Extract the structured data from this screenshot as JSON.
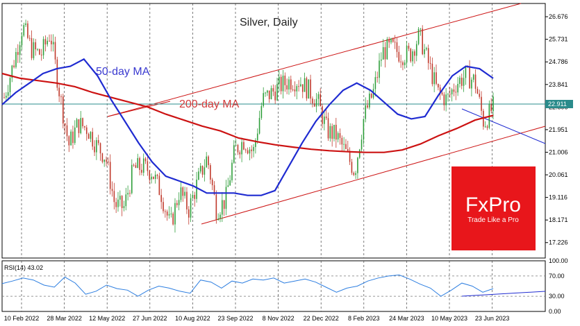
{
  "chart_data": {
    "type": "candlestick",
    "title": "Silver, Daily",
    "annotations": {
      "ma50": "50-day MA",
      "ma200": "200-day MA"
    },
    "last_price": "22.911",
    "price_axis": {
      "labels": [
        "26.676",
        "25.731",
        "24.786",
        "23.841",
        "22.896",
        "21.951",
        "21.006",
        "20.061",
        "19.116",
        "18.171",
        "17.226"
      ],
      "values": [
        26.676,
        25.731,
        24.786,
        23.841,
        22.896,
        21.951,
        21.006,
        20.061,
        19.116,
        18.171,
        17.226
      ],
      "range": [
        16.58,
        27.23
      ]
    },
    "date_axis": {
      "labels": [
        "10 Feb 2022",
        "28 Mar 2022",
        "12 May 2022",
        "27 Jun 2022",
        "10 Aug 2022",
        "23 Sep 2022",
        "8 Nov 2022",
        "22 Dec 2022",
        "8 Feb 2023",
        "24 Mar 2023",
        "10 May 2023",
        "23 Jun 2023"
      ]
    },
    "price_series": [
      [
        "10 Feb 2022",
        23.3
      ],
      [
        "28 Feb 2022",
        24.7
      ],
      [
        "8 Mar 2022",
        26.3
      ],
      [
        "15 Mar 2022",
        25.3
      ],
      [
        "28 Mar 2022",
        25.1
      ],
      [
        "18 Apr 2022",
        26.0
      ],
      [
        "28 Apr 2022",
        23.5
      ],
      [
        "12 May 2022",
        21.3
      ],
      [
        "20 May 2022",
        22.2
      ],
      [
        "5 Jun 2022",
        22.0
      ],
      [
        "20 Jun 2022",
        21.3
      ],
      [
        "27 Jun 2022",
        20.8
      ],
      [
        "14 Jul 2022",
        18.8
      ],
      [
        "22 Jul 2022",
        18.7
      ],
      [
        "29 Jul 2022",
        20.3
      ],
      [
        "5 Aug 2022",
        20.4
      ],
      [
        "10 Aug 2022",
        20.2
      ],
      [
        "22 Aug 2022",
        19.3
      ],
      [
        "1 Sep 2022",
        17.9
      ],
      [
        "15 Sep 2022",
        19.4
      ],
      [
        "23 Sep 2022",
        18.6
      ],
      [
        "1 Oct 2022",
        19.8
      ],
      [
        "5 Oct 2022",
        20.8
      ],
      [
        "15 Oct 2022",
        18.6
      ],
      [
        "28 Oct 2022",
        19.0
      ],
      [
        "8 Nov 2022",
        21.1
      ],
      [
        "15 Nov 2022",
        21.5
      ],
      [
        "24 Nov 2022",
        21.0
      ],
      [
        "1 Dec 2022",
        23.2
      ],
      [
        "10 Dec 2022",
        23.5
      ],
      [
        "22 Dec 2022",
        23.8
      ],
      [
        "2 Jan 2023",
        24.0
      ],
      [
        "13 Jan 2023",
        24.0
      ],
      [
        "23 Jan 2023",
        23.6
      ],
      [
        "31 Jan 2023",
        23.1
      ],
      [
        "8 Feb 2023",
        21.9
      ],
      [
        "20 Feb 2023",
        21.7
      ],
      [
        "1 Mar 2023",
        21.0
      ],
      [
        "10 Mar 2023",
        20.2
      ],
      [
        "17 Mar 2023",
        22.5
      ],
      [
        "24 Mar 2023",
        23.5
      ],
      [
        "4 Apr 2023",
        25.2
      ],
      [
        "14 Apr 2023",
        25.4
      ],
      [
        "21 Apr 2023",
        25.1
      ],
      [
        "28 Apr 2023",
        25.1
      ],
      [
        "5 May 2023",
        25.9
      ],
      [
        "10 May 2023",
        24.7
      ],
      [
        "17 May 2023",
        23.5
      ],
      [
        "26 May 2023",
        23.2
      ],
      [
        "2 Jun 2023",
        23.9
      ],
      [
        "9 Jun 2023",
        24.2
      ],
      [
        "16 Jun 2023",
        24.0
      ],
      [
        "23 Jun 2023",
        22.2
      ],
      [
        "28 Jun 2023",
        22.9
      ]
    ],
    "series": [
      {
        "name": "50-day MA",
        "color": "#1f2bd1",
        "values": [
          23.0,
          23.5,
          23.9,
          24.3,
          24.5,
          24.6,
          24.9,
          24.2,
          23.2,
          22.3,
          21.4,
          20.6,
          20.0,
          19.8,
          19.6,
          19.3,
          19.3,
          19.3,
          19.2,
          19.2,
          19.4,
          20.4,
          21.4,
          22.3,
          23.0,
          23.6,
          23.9,
          23.6,
          23.1,
          22.6,
          22.4,
          22.5,
          23.4,
          24.2,
          24.6,
          24.5,
          24.1
        ]
      },
      {
        "name": "200-day MA",
        "color": "#cc1212",
        "values": [
          24.3,
          24.1,
          24.0,
          23.9,
          23.75,
          23.5,
          23.3,
          23.1,
          22.9,
          22.6,
          22.35,
          22.1,
          21.9,
          21.6,
          21.45,
          21.32,
          21.22,
          21.13,
          21.07,
          21.03,
          21.0,
          21.0,
          21.1,
          21.35,
          21.7,
          22.0,
          22.35,
          22.55
        ]
      }
    ],
    "rsi": {
      "label": "RSI(14) 43.02",
      "axis_labels": [
        "100.00",
        "70.00",
        "30.00",
        "0.00"
      ],
      "levels": [
        70,
        30
      ],
      "values": [
        55,
        60,
        66,
        62,
        52,
        48,
        68,
        56,
        34,
        40,
        52,
        45,
        42,
        30,
        42,
        50,
        46,
        40,
        36,
        62,
        58,
        46,
        60,
        56,
        64,
        62,
        66,
        56,
        60,
        64,
        58,
        48,
        38,
        46,
        50,
        60,
        66,
        70,
        72,
        64,
        54,
        46,
        30,
        42,
        56,
        50,
        38,
        45
      ]
    },
    "trend_lines": [
      {
        "kind": "channel-upper",
        "color": "#cc1212"
      },
      {
        "kind": "channel-lower",
        "color": "#cc1212"
      },
      {
        "kind": "middle",
        "color": "#cc1212"
      },
      {
        "kind": "support",
        "color": "#1f2bd1"
      },
      {
        "kind": "rsi-trend",
        "color": "#1f2bd1"
      }
    ],
    "grid": "vertical dashed",
    "legend": "none"
  },
  "logo": {
    "brand": "FxPro",
    "tagline": "Trade Like a Pro",
    "color": "#e8161b"
  }
}
